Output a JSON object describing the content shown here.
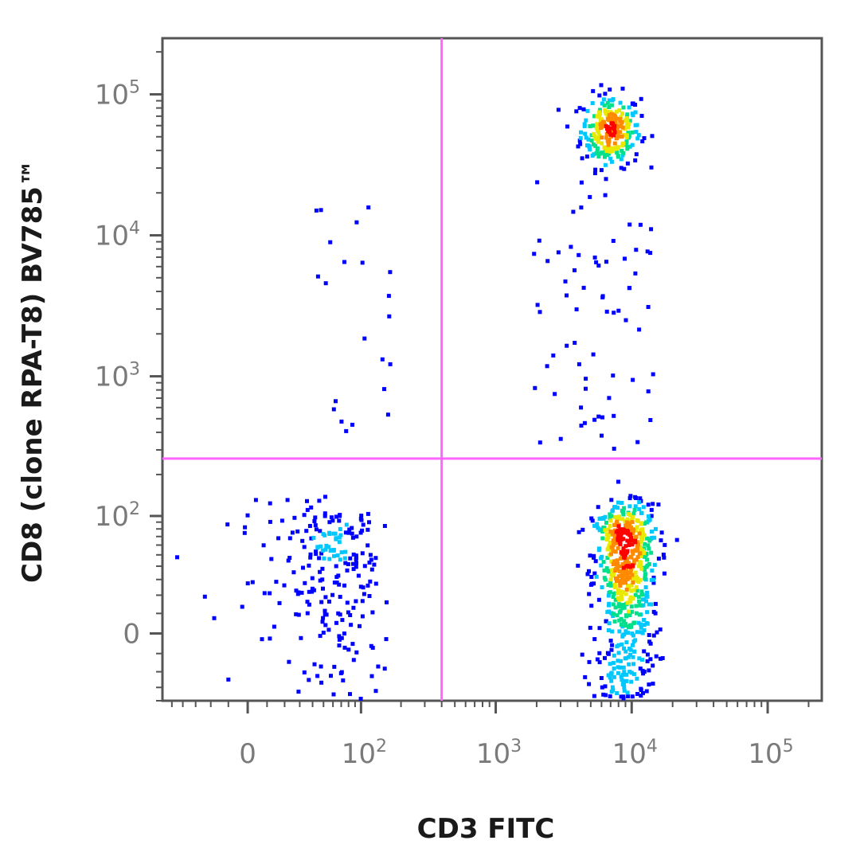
{
  "chart_data": {
    "type": "scatter",
    "title": "",
    "xlabel": "CD3 FITC",
    "ylabel": "CD8 (clone RPA-T8) BV785™",
    "x_scale": "biexponential (linear near 0, logarithmic above 10^2)",
    "y_scale": "biexponential (linear near 0, logarithmic above 10^2)",
    "xlim": [
      -60,
      250000
    ],
    "ylim": [
      -40,
      250000
    ],
    "x_ticks": [
      {
        "value": 0,
        "base": "0",
        "exp": ""
      },
      {
        "value": 100,
        "base": "10",
        "exp": "2"
      },
      {
        "value": 1000,
        "base": "10",
        "exp": "3"
      },
      {
        "value": 10000,
        "base": "10",
        "exp": "4"
      },
      {
        "value": 100000,
        "base": "10",
        "exp": "5"
      }
    ],
    "y_ticks": [
      {
        "value": 0,
        "base": "0",
        "exp": ""
      },
      {
        "value": 100,
        "base": "10",
        "exp": "2"
      },
      {
        "value": 1000,
        "base": "10",
        "exp": "3"
      },
      {
        "value": 10000,
        "base": "10",
        "exp": "4"
      },
      {
        "value": 100000,
        "base": "10",
        "exp": "5"
      }
    ],
    "quadrant_gates": {
      "x": 400,
      "y": 260,
      "color": "#ff66ff"
    },
    "grid": false,
    "legend": "none",
    "density_colors": [
      "#0000ff",
      "#00c8ff",
      "#00e08a",
      "#e8e800",
      "#ff8a00",
      "#ff0000"
    ],
    "populations": [
      {
        "x_center": 7000,
        "y_center": 55000,
        "x_spread_decades": 0.11,
        "y_spread_decades": 0.13,
        "count": 260
      },
      {
        "x_center": 9000,
        "y_center": 30,
        "x_spread_decades": 0.12,
        "y_spread": 45,
        "count": 700
      },
      {
        "x_center": 60,
        "y_center": 30,
        "x_spread": 35,
        "y_spread": 45,
        "count": 260
      }
    ]
  }
}
